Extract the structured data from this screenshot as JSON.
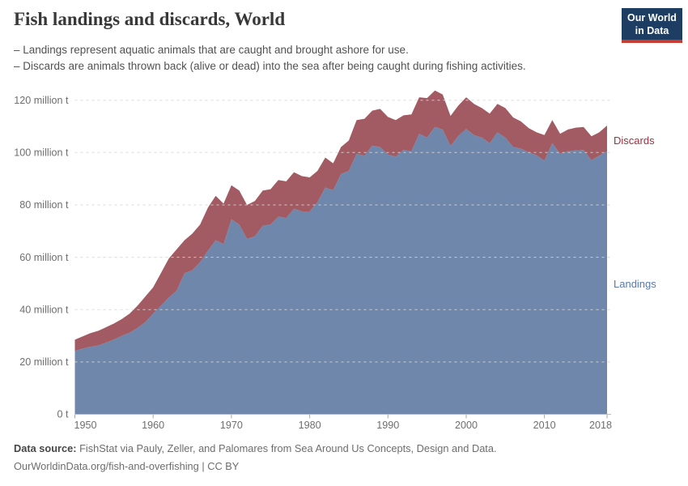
{
  "header": {
    "title": "Fish landings and discards, World",
    "subtitle_lines": [
      "– Landings represent aquatic animals that are caught and brought ashore for use.",
      "– Discards are animals thrown back (alive or dead) into the sea after being caught during fishing activities."
    ],
    "logo": {
      "line1": "Our World",
      "line2": "in Data",
      "bg_color": "#1d3d63",
      "bar_color": "#c83c31"
    }
  },
  "chart_data": {
    "type": "area",
    "stacked": true,
    "title": "Fish landings and discards, World",
    "xlabel": "",
    "ylabel": "",
    "grid": "horizontal-dashed",
    "legend_position": "right-of-plot",
    "ylim": [
      0,
      120
    ],
    "ytick_interval": 20,
    "ytick_labels": [
      "0 t",
      "20 million t",
      "40 million t",
      "60 million t",
      "80 million t",
      "100 million t",
      "120 million t"
    ],
    "xticks": [
      1950,
      1960,
      1970,
      1980,
      1990,
      2000,
      2010,
      2018
    ],
    "x": [
      1950,
      1951,
      1952,
      1953,
      1954,
      1955,
      1956,
      1957,
      1958,
      1959,
      1960,
      1961,
      1962,
      1963,
      1964,
      1965,
      1966,
      1967,
      1968,
      1969,
      1970,
      1971,
      1972,
      1973,
      1974,
      1975,
      1976,
      1977,
      1978,
      1979,
      1980,
      1981,
      1982,
      1983,
      1984,
      1985,
      1986,
      1987,
      1988,
      1989,
      1990,
      1991,
      1992,
      1993,
      1994,
      1995,
      1996,
      1997,
      1998,
      1999,
      2000,
      2001,
      2002,
      2003,
      2004,
      2005,
      2006,
      2007,
      2008,
      2009,
      2010,
      2011,
      2012,
      2013,
      2014,
      2015,
      2016,
      2017,
      2018
    ],
    "unit": "million tonnes",
    "series": [
      {
        "name": "Landings",
        "color": "#7087ac",
        "label_color": "#5878b3",
        "values": [
          24.2,
          25.1,
          25.8,
          26.3,
          27.4,
          28.6,
          30.0,
          31.2,
          33.0,
          35.2,
          38.5,
          41.5,
          44.6,
          47.2,
          53.9,
          55.0,
          58.1,
          62.5,
          66.5,
          65.0,
          74.5,
          72.5,
          67.0,
          68.0,
          72.0,
          72.5,
          75.5,
          75.0,
          78.5,
          77.5,
          77.5,
          81.0,
          86.6,
          85.6,
          91.8,
          93.0,
          99.5,
          98.8,
          102.6,
          102.1,
          99.2,
          98.5,
          101.0,
          100.5,
          107.2,
          105.7,
          109.8,
          108.8,
          102.5,
          106.4,
          109.0,
          106.7,
          105.7,
          103.6,
          107.7,
          105.7,
          102.1,
          101.5,
          100.0,
          99.0,
          96.9,
          103.6,
          99.5,
          100.5,
          100.8,
          101.0,
          97.1,
          98.8,
          100.5
        ]
      },
      {
        "name": "Discards",
        "color": "#a25a63",
        "label_color": "#9a3140",
        "values": [
          4.3,
          4.7,
          5.2,
          5.6,
          5.9,
          6.1,
          6.4,
          7.3,
          8.5,
          9.8,
          10.0,
          12.5,
          14.9,
          15.8,
          12.6,
          14.0,
          14.4,
          16.5,
          17.0,
          15.5,
          13.0,
          13.0,
          13.0,
          13.5,
          13.5,
          13.5,
          14.0,
          14.0,
          14.0,
          13.5,
          13.0,
          12.0,
          11.5,
          10.3,
          10.3,
          11.6,
          12.9,
          14.1,
          13.4,
          14.6,
          14.4,
          13.9,
          13.2,
          14.1,
          13.9,
          15.1,
          13.9,
          13.4,
          11.5,
          11.6,
          12.1,
          11.9,
          11.3,
          11.3,
          10.9,
          11.3,
          11.3,
          10.4,
          9.3,
          8.7,
          9.8,
          8.8,
          7.7,
          8.3,
          8.7,
          8.8,
          9.1,
          8.9,
          9.8
        ]
      }
    ]
  },
  "footer": {
    "source_label": "Data source:",
    "source_text": " FishStat via Pauly, Zeller, and Palomares from Sea Around Us Concepts, Design and Data.",
    "link_line": "OurWorldinData.org/fish-and-overfishing | CC BY"
  }
}
